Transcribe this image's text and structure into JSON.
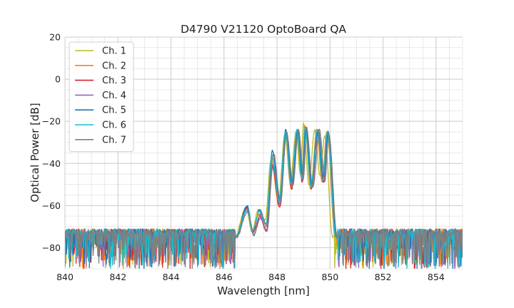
{
  "chart_data": {
    "type": "line",
    "title": "D4790 V21120 OptoBoard QA",
    "xlabel": "Wavelength [nm]",
    "ylabel": "Optical Power [dB]",
    "xlim": [
      840,
      855
    ],
    "ylim": [
      -90,
      20
    ],
    "xticks": [
      840,
      842,
      844,
      846,
      848,
      850,
      852,
      854
    ],
    "yticks": [
      20,
      0,
      -20,
      -40,
      -60,
      -80
    ],
    "minor_xstep": 0.5,
    "minor_ystep": 5,
    "grid": true,
    "legend_position": "top-left",
    "noise_floor": {
      "level": -79,
      "low": -90,
      "high": -72
    },
    "series": [
      {
        "name": "Ch. 1",
        "color": "#bcbd22",
        "shift": 0.0,
        "offset": 0.0,
        "peaks": [
          [
            846.83,
            -61
          ],
          [
            847.3,
            -62
          ],
          [
            847.78,
            -38
          ],
          [
            848.3,
            -26
          ],
          [
            848.72,
            -25
          ],
          [
            849.0,
            -21
          ],
          [
            849.42,
            -24
          ],
          [
            849.8,
            -27
          ]
        ],
        "valleys": [
          [
            847.05,
            -72
          ],
          [
            847.55,
            -67
          ],
          [
            848.05,
            -58
          ],
          [
            848.5,
            -49
          ],
          [
            848.88,
            -45
          ],
          [
            849.2,
            -50
          ],
          [
            849.62,
            -46
          ]
        ],
        "edge_low": 846.4,
        "edge_high": 850.1
      },
      {
        "name": "Ch. 2",
        "color": "#ff7f0e",
        "shift": 0.02,
        "offset": 0.0,
        "peaks": [
          [
            846.85,
            -61
          ],
          [
            847.32,
            -64
          ],
          [
            847.8,
            -40
          ],
          [
            848.32,
            -25
          ],
          [
            848.75,
            -25
          ],
          [
            849.05,
            -22
          ],
          [
            849.5,
            -24
          ],
          [
            849.88,
            -25
          ]
        ],
        "valleys": [
          [
            847.07,
            -72
          ],
          [
            847.57,
            -70
          ],
          [
            848.07,
            -60
          ],
          [
            848.52,
            -51
          ],
          [
            848.92,
            -47
          ],
          [
            849.27,
            -52
          ],
          [
            849.7,
            -49
          ]
        ],
        "edge_low": 846.42,
        "edge_high": 850.2
      },
      {
        "name": "Ch. 3",
        "color": "#d62728",
        "shift": 0.04,
        "offset": 0.0,
        "peaks": [
          [
            846.87,
            -61
          ],
          [
            847.35,
            -65
          ],
          [
            847.82,
            -41
          ],
          [
            848.33,
            -26
          ],
          [
            848.77,
            -25
          ],
          [
            849.08,
            -23
          ],
          [
            849.55,
            -25
          ],
          [
            849.92,
            -25
          ]
        ],
        "valleys": [
          [
            847.1,
            -73
          ],
          [
            847.6,
            -72
          ],
          [
            848.1,
            -61
          ],
          [
            848.55,
            -52
          ],
          [
            848.95,
            -49
          ],
          [
            849.3,
            -52
          ],
          [
            849.75,
            -49
          ]
        ],
        "edge_low": 846.45,
        "edge_high": 850.25
      },
      {
        "name": "Ch. 4",
        "color": "#9467bd",
        "shift": 0.06,
        "offset": 0.0,
        "peaks": [
          [
            846.88,
            -62
          ],
          [
            847.37,
            -66
          ],
          [
            847.85,
            -41
          ],
          [
            848.35,
            -27
          ],
          [
            848.8,
            -25
          ],
          [
            849.1,
            -24
          ],
          [
            849.6,
            -25
          ],
          [
            849.95,
            -26
          ]
        ],
        "valleys": [
          [
            847.12,
            -74
          ],
          [
            847.62,
            -72
          ],
          [
            848.12,
            -60
          ],
          [
            848.58,
            -51
          ],
          [
            848.98,
            -48
          ],
          [
            849.35,
            -51
          ],
          [
            849.8,
            -49
          ]
        ],
        "edge_low": 846.45,
        "edge_high": 850.25
      },
      {
        "name": "Ch. 5",
        "color": "#1f77b4",
        "shift": 0.05,
        "offset": 0.0,
        "peaks": [
          [
            846.87,
            -60
          ],
          [
            847.34,
            -62
          ],
          [
            847.82,
            -34
          ],
          [
            848.33,
            -24
          ],
          [
            848.78,
            -24
          ],
          [
            849.08,
            -23
          ],
          [
            849.55,
            -24
          ],
          [
            849.93,
            -25
          ]
        ],
        "valleys": [
          [
            847.1,
            -72
          ],
          [
            847.6,
            -69
          ],
          [
            848.1,
            -57
          ],
          [
            848.55,
            -49
          ],
          [
            848.95,
            -46
          ],
          [
            849.3,
            -50
          ],
          [
            849.75,
            -47
          ]
        ],
        "edge_low": 846.45,
        "edge_high": 850.25
      },
      {
        "name": "Ch. 6",
        "color": "#17becf",
        "shift": 0.03,
        "offset": 0.0,
        "peaks": [
          [
            846.86,
            -62
          ],
          [
            847.33,
            -63
          ],
          [
            847.81,
            -37
          ],
          [
            848.32,
            -25
          ],
          [
            848.76,
            -24
          ],
          [
            849.06,
            -23
          ],
          [
            849.52,
            -24
          ],
          [
            849.9,
            -25
          ]
        ],
        "valleys": [
          [
            847.08,
            -72
          ],
          [
            847.58,
            -69
          ],
          [
            848.08,
            -58
          ],
          [
            848.53,
            -50
          ],
          [
            848.93,
            -47
          ],
          [
            849.28,
            -51
          ],
          [
            849.72,
            -48
          ]
        ],
        "edge_low": 846.43,
        "edge_high": 850.22
      },
      {
        "name": "Ch. 7",
        "color": "#7f7f7f",
        "shift": 0.07,
        "offset": 0.0,
        "peaks": [
          [
            846.89,
            -63
          ],
          [
            847.38,
            -64
          ],
          [
            847.86,
            -35
          ],
          [
            848.36,
            -25
          ],
          [
            848.81,
            -24
          ],
          [
            849.11,
            -23
          ],
          [
            849.6,
            -24
          ],
          [
            849.95,
            -26
          ]
        ],
        "valleys": [
          [
            847.13,
            -74
          ],
          [
            847.63,
            -70
          ],
          [
            848.13,
            -58
          ],
          [
            848.6,
            -50
          ],
          [
            849.0,
            -47
          ],
          [
            849.35,
            -51
          ],
          [
            849.8,
            -48
          ]
        ],
        "edge_low": 846.47,
        "edge_high": 850.27
      }
    ]
  }
}
